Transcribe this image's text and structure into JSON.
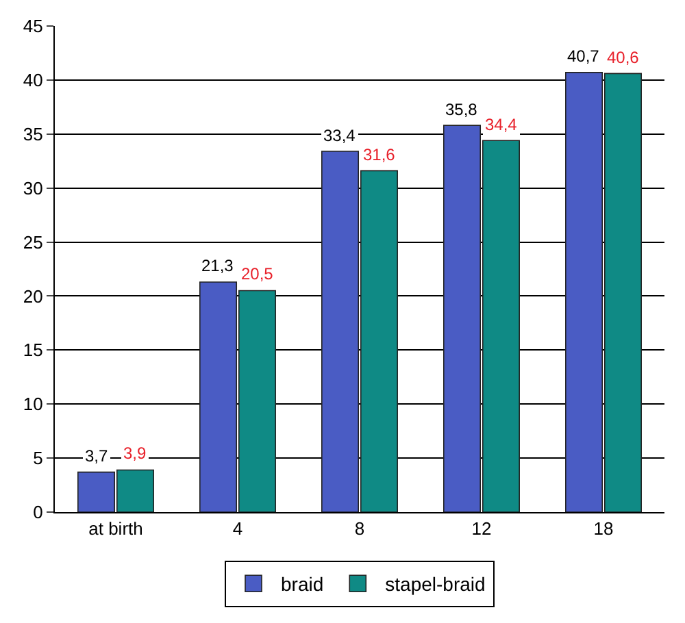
{
  "chart_data": {
    "type": "bar",
    "categories": [
      "at birth",
      "4",
      "8",
      "12",
      "18"
    ],
    "series": [
      {
        "name": "braid",
        "color": "#4a5cc4",
        "values": [
          3.7,
          21.3,
          33.4,
          35.8,
          40.7
        ],
        "value_labels": [
          "3,7",
          "21,3",
          "33,4",
          "35,8",
          "40,7"
        ]
      },
      {
        "name": "stapel-braid",
        "color": "#0f8a85",
        "values": [
          3.9,
          20.5,
          31.6,
          34.4,
          40.6
        ],
        "value_labels": [
          "3,9",
          "20,5",
          "31,6",
          "34,4",
          "40,6"
        ]
      }
    ],
    "ylim": [
      0,
      45
    ],
    "yticks": [
      0,
      5,
      10,
      15,
      20,
      25,
      30,
      35,
      40,
      45
    ],
    "grid": "y",
    "legend": "bottom"
  }
}
